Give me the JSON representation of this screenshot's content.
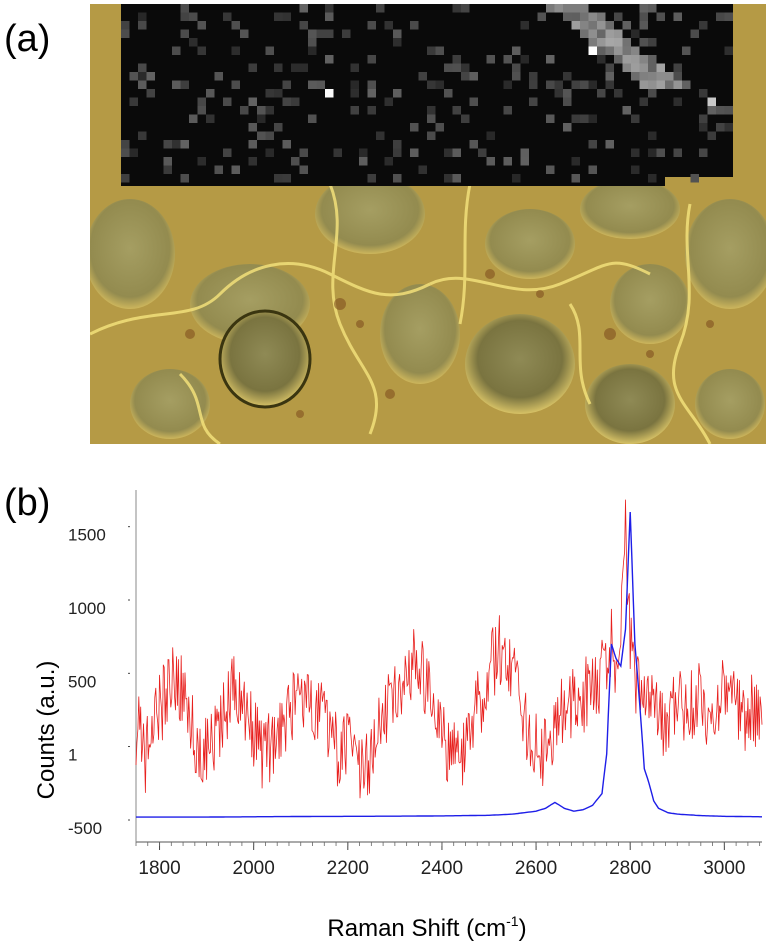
{
  "panels": {
    "a_label": "(a)",
    "b_label": "(b)"
  },
  "image": {
    "description_icon": "microscope-image",
    "background_color": "#b59a45",
    "overlay_color": "#0a0a0a"
  },
  "chart_data": {
    "type": "line",
    "xlabel": "Raman Shift (cm",
    "xlabel_sup": "-1",
    "xlabel_end": ")",
    "ylabel": "Counts (a.u.)",
    "xlim": [
      1750,
      3080
    ],
    "ylim": [
      -650,
      1750
    ],
    "x_ticks": [
      1800,
      2000,
      2200,
      2400,
      2600,
      2800,
      3000
    ],
    "y_ticks": [
      1500,
      1000,
      500,
      1,
      -500
    ],
    "y_tick_labels": [
      "1500",
      "1000",
      "500",
      "1",
      "-500"
    ],
    "series": [
      {
        "color": "#e8201e",
        "x": [
          1750,
          1760,
          1770,
          1780,
          1800,
          1820,
          1840,
          1860,
          1880,
          1900,
          1920,
          1940,
          1960,
          1980,
          2000,
          2020,
          2040,
          2060,
          2080,
          2100,
          2120,
          2140,
          2160,
          2180,
          2200,
          2220,
          2240,
          2260,
          2280,
          2300,
          2320,
          2340,
          2360,
          2380,
          2400,
          2420,
          2440,
          2460,
          2480,
          2500,
          2520,
          2540,
          2560,
          2580,
          2600,
          2620,
          2640,
          2660,
          2680,
          2700,
          2720,
          2740,
          2750,
          2760,
          2770,
          2780,
          2790,
          2800,
          2810,
          2820,
          2840,
          2860,
          2880,
          2900,
          2920,
          2940,
          2960,
          2980,
          3000,
          3020,
          3040,
          3060,
          3080
        ],
        "y": [
          100,
          200,
          -100,
          150,
          250,
          400,
          450,
          200,
          50,
          -50,
          50,
          250,
          450,
          300,
          100,
          -50,
          0,
          150,
          250,
          300,
          350,
          250,
          50,
          -50,
          100,
          -100,
          -150,
          50,
          200,
          350,
          450,
          550,
          500,
          250,
          50,
          -50,
          -100,
          100,
          300,
          500,
          650,
          600,
          450,
          100,
          0,
          -50,
          150,
          250,
          300,
          350,
          400,
          500,
          650,
          700,
          600,
          750,
          1600,
          650,
          500,
          400,
          300,
          200,
          150,
          300,
          200,
          350,
          250,
          150,
          400,
          300,
          200,
          250,
          150
        ]
      },
      {
        "color": "#1e1ee8",
        "x": [
          1750,
          1900,
          2000,
          2100,
          2200,
          2300,
          2400,
          2500,
          2550,
          2600,
          2620,
          2640,
          2660,
          2680,
          2700,
          2720,
          2740,
          2750,
          2760,
          2770,
          2780,
          2790,
          2800,
          2810,
          2820,
          2830,
          2840,
          2850,
          2860,
          2880,
          2900,
          2950,
          3000,
          3080
        ],
        "y": [
          -480,
          -480,
          -478,
          -476,
          -475,
          -474,
          -472,
          -468,
          -460,
          -440,
          -420,
          -380,
          -420,
          -440,
          -430,
          -400,
          -320,
          -50,
          700,
          600,
          550,
          800,
          1600,
          700,
          300,
          -150,
          -250,
          -370,
          -420,
          -450,
          -460,
          -470,
          -475,
          -478
        ]
      }
    ]
  }
}
